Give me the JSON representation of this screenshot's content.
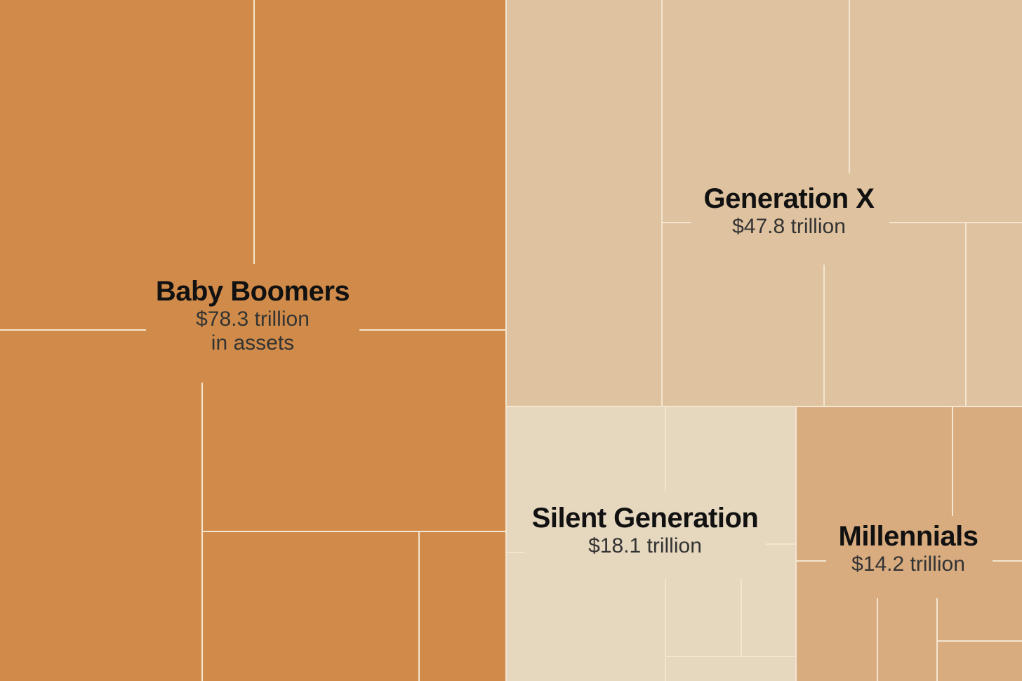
{
  "chart_data": {
    "type": "treemap",
    "title": "",
    "units": "trillion",
    "items": [
      {
        "name": "Baby Boomers",
        "value": 78.3,
        "label": "$78.3 trillion",
        "sublabel": "in assets",
        "color": "#d08b4a"
      },
      {
        "name": "Generation X",
        "value": 47.8,
        "label": "$47.8 trillion",
        "sublabel": "",
        "color": "#dfc3a0"
      },
      {
        "name": "Silent Generation",
        "value": 18.1,
        "label": "$18.1 trillion",
        "sublabel": "",
        "color": "#e6d7bf"
      },
      {
        "name": "Millennials",
        "value": 14.2,
        "label": "$14.2 trillion",
        "sublabel": "",
        "color": "#d9ac80"
      }
    ]
  },
  "colors": {
    "boomers": "#d08b4a",
    "genx": "#dfc3a0",
    "silent": "#e6d7bf",
    "millennials": "#d9ac80",
    "divider": "#f3e5cf",
    "name_text": "#111111",
    "value_text": "#333333"
  }
}
